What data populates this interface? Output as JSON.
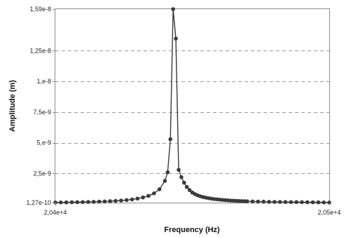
{
  "chart_data": {
    "type": "line",
    "title": "",
    "xlabel": "Frequency (Hz)",
    "ylabel": "Amplitude (m)",
    "xlim": [
      20400,
      20500
    ],
    "ylim": [
      1.27e-10,
      1.59e-08
    ],
    "grid": "horizontal-dashed",
    "legend": "none",
    "x_ticks": [
      {
        "value": 20400,
        "label": "2,04e+4"
      },
      {
        "value": 20500,
        "label": "2,05e+4"
      }
    ],
    "y_ticks": [
      {
        "value": 1.27e-10,
        "label": "1,27e-10"
      },
      {
        "value": 2.5e-09,
        "label": "2,5e-9"
      },
      {
        "value": 5e-09,
        "label": "5,e-9"
      },
      {
        "value": 7.5e-09,
        "label": "7,5e-9"
      },
      {
        "value": 1e-08,
        "label": "1,e-8"
      },
      {
        "value": 1.25e-08,
        "label": "1,25e-8"
      },
      {
        "value": 1.59e-08,
        "label": "1,59e-8"
      }
    ],
    "series": [
      {
        "color": "#3a3a3a",
        "marker": "circle",
        "x": [
          20400,
          20402,
          20404,
          20406,
          20408,
          20410,
          20412,
          20414,
          20416,
          20418,
          20420,
          20422,
          20424,
          20426,
          20428,
          20430,
          20432,
          20434,
          20436,
          20438,
          20440,
          20441,
          20442,
          20443,
          20444,
          20445,
          20446,
          20447,
          20448,
          20449,
          20450,
          20451,
          20452,
          20453,
          20454,
          20455,
          20456,
          20457,
          20458,
          20459,
          20460,
          20461,
          20462,
          20463,
          20464,
          20465,
          20466,
          20467,
          20468,
          20469,
          20470,
          20472,
          20474,
          20476,
          20478,
          20480,
          20482,
          20484,
          20486,
          20488,
          20490,
          20492,
          20494,
          20496,
          20498,
          20500
        ],
        "y": [
          1.4e-10,
          1.45e-10,
          1.5e-10,
          1.6e-10,
          1.65e-10,
          1.75e-10,
          1.85e-10,
          1.95e-10,
          2.1e-10,
          2.25e-10,
          2.45e-10,
          2.7e-10,
          3e-10,
          3.4e-10,
          3.9e-10,
          4.6e-10,
          5.5e-10,
          6.8e-10,
          8.8e-10,
          1.22e-09,
          1.9e-09,
          2.6e-09,
          5.3e-09,
          1.59e-08,
          1.35e-08,
          2.8e-09,
          2.2e-09,
          1.75e-09,
          1.4e-09,
          1.15e-09,
          9.5e-10,
          8.2e-10,
          7.2e-10,
          6.4e-10,
          5.8e-10,
          5.3e-10,
          4.85e-10,
          4.5e-10,
          4.2e-10,
          3.95e-10,
          3.7e-10,
          3.5e-10,
          3.3e-10,
          3.15e-10,
          3e-10,
          2.85e-10,
          2.75e-10,
          2.65e-10,
          2.55e-10,
          2.45e-10,
          2.35e-10,
          2.25e-10,
          2.15e-10,
          2.05e-10,
          1.95e-10,
          1.9e-10,
          1.85e-10,
          1.8e-10,
          1.75e-10,
          1.7e-10,
          1.65e-10,
          1.6e-10,
          1.55e-10,
          1.5e-10,
          1.45e-10,
          1.4e-10
        ]
      }
    ]
  }
}
